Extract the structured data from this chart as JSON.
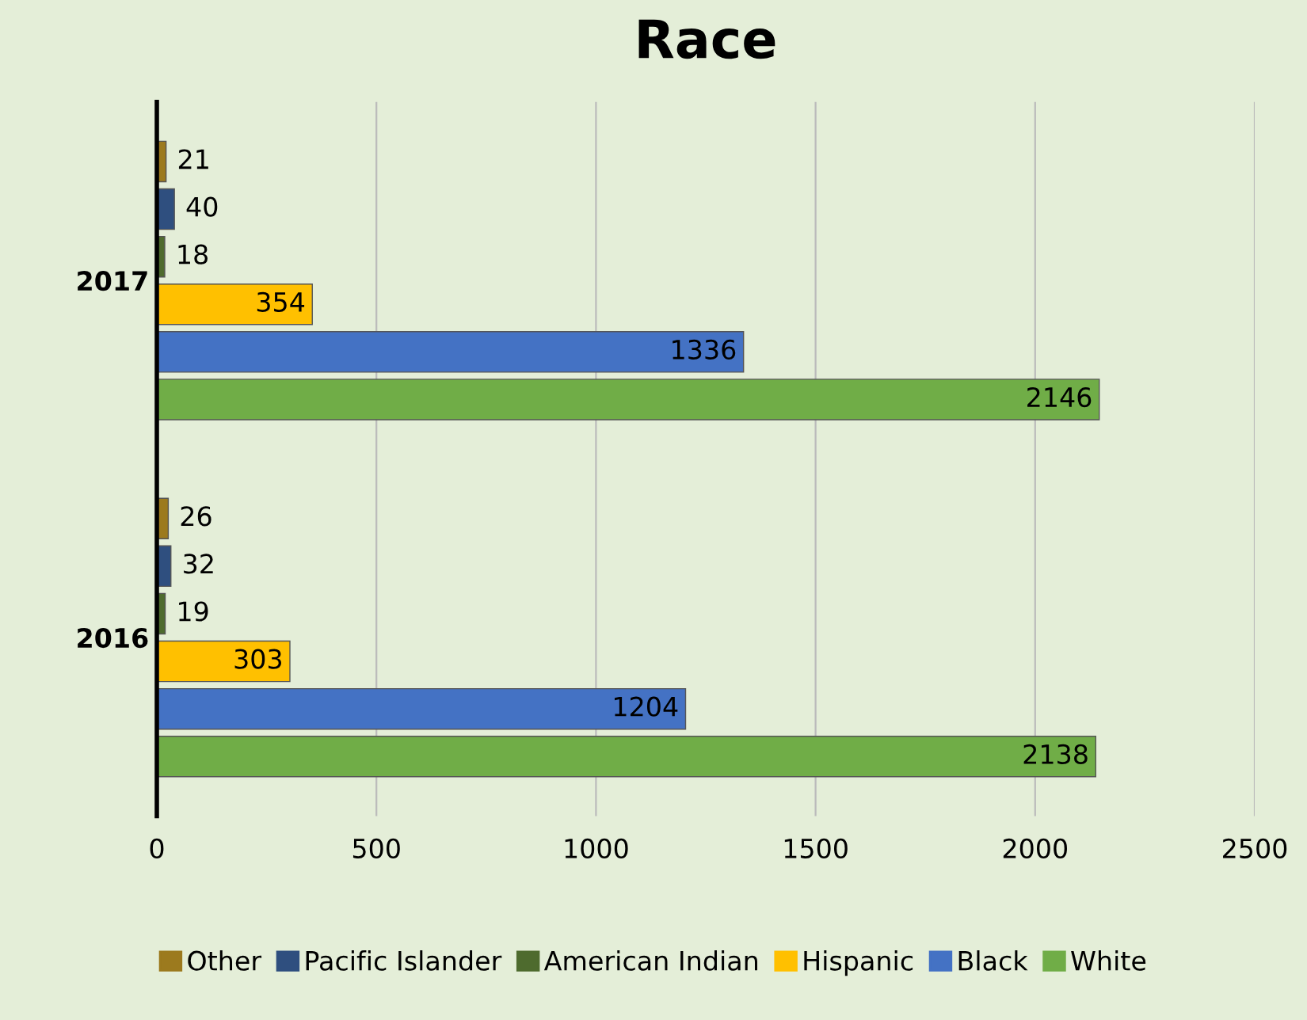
{
  "chart_data": {
    "type": "bar",
    "orientation": "horizontal",
    "title": "Race",
    "categories": [
      "2017",
      "2016"
    ],
    "series": [
      {
        "name": "White",
        "color": "#70ad47",
        "values": [
          2146,
          2138
        ]
      },
      {
        "name": "Black",
        "color": "#4472c4",
        "values": [
          1336,
          1204
        ]
      },
      {
        "name": "Hispanic",
        "color": "#ffc000",
        "values": [
          354,
          303
        ]
      },
      {
        "name": "American Indian",
        "color": "#4e6b2e",
        "values": [
          18,
          19
        ]
      },
      {
        "name": "Pacific Islander",
        "color": "#2f4f7f",
        "values": [
          40,
          32
        ]
      },
      {
        "name": "Other",
        "color": "#9c7a1e",
        "values": [
          21,
          26
        ]
      }
    ],
    "xlim": [
      0,
      2500
    ],
    "xticks": [
      0,
      500,
      1000,
      1500,
      2000,
      2500
    ],
    "grid": "x",
    "legend": "bottom",
    "data_labels": true
  }
}
